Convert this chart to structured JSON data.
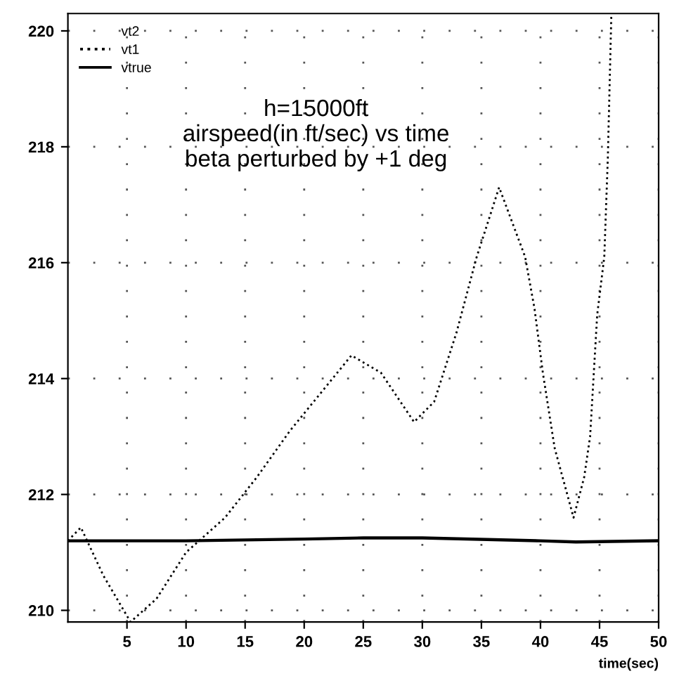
{
  "chart_data": {
    "type": "line",
    "title": "h=15000ft\nairspeed(in ft/sec) vs time\nbeta perturbed by +1 deg",
    "xlabel": "time(sec)",
    "xlim": [
      0,
      50
    ],
    "xticks": [
      5,
      10,
      15,
      20,
      25,
      30,
      35,
      40,
      45,
      50
    ],
    "ylim": [
      209.8,
      220.3
    ],
    "yticks": [
      210,
      212,
      214,
      216,
      218,
      220
    ],
    "grid": true,
    "legend": "top left",
    "series": [
      {
        "name": "vt2"
      },
      {
        "name": "vt1",
        "color": "#000000",
        "line_style": "dotted",
        "x": [
          0,
          1.1,
          3,
          5.3,
          7.5,
          10,
          13.3,
          16,
          18.8,
          21.6,
          24,
          26.5,
          29.3,
          31,
          32.9,
          34.6,
          36.5,
          38.7,
          39.5,
          40.2,
          41.2,
          42.8,
          43.7,
          44.2,
          44.8,
          45.4,
          45.7,
          46
        ],
        "values": [
          211.2,
          211.43,
          210.6,
          209.8,
          210.2,
          211.0,
          211.6,
          212.3,
          213.1,
          213.8,
          214.4,
          214.1,
          213.25,
          213.6,
          214.8,
          216.1,
          217.3,
          216.1,
          215.2,
          214.1,
          212.8,
          211.6,
          212.3,
          213.0,
          215.1,
          216.1,
          217.8,
          220.3
        ]
      },
      {
        "name": "vtrue",
        "color": "#000000",
        "line_style": "solid",
        "x": [
          0,
          10,
          20,
          25,
          30,
          40,
          43,
          50
        ],
        "values": [
          211.2,
          211.2,
          211.23,
          211.25,
          211.25,
          211.2,
          211.18,
          211.2
        ]
      }
    ]
  }
}
